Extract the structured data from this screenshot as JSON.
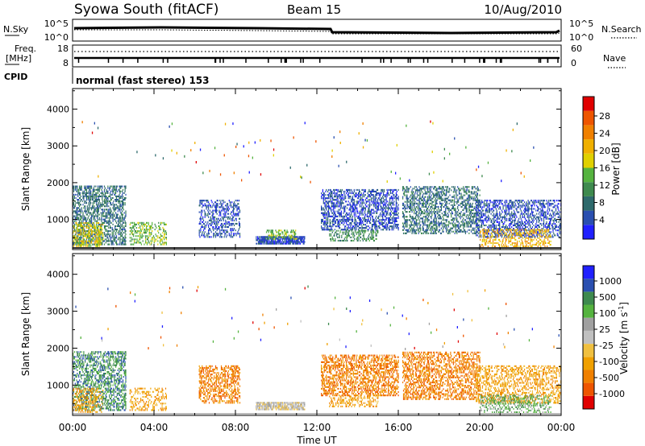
{
  "header": {
    "station": "Syowa South (fitACF)",
    "beam": "Beam 15",
    "date": "10/Aug/2010"
  },
  "top_panel": {
    "left_label_sky": "N.Sky",
    "left_ticks": [
      "10^5",
      "10^0"
    ],
    "right_ticks": [
      "10^5",
      "10^0"
    ],
    "right_label_search": "N.Search",
    "freq_label_line1": "Freq.",
    "freq_label_line2": "[MHz]",
    "freq_ticks": [
      "18",
      "8"
    ],
    "nave_ticks": [
      "60",
      "0"
    ],
    "right_label_nave": "Nave",
    "cpid_label": "CPID",
    "cpid_text": "normal (fast stereo) 153"
  },
  "chart_data": [
    {
      "type": "heatmap",
      "name": "power",
      "ylabel": "Slant Range [km]",
      "xlabel": "Time UT",
      "x_ticks": [
        "00:00",
        "04:00",
        "08:00",
        "12:00",
        "16:00",
        "20:00",
        "00:00"
      ],
      "x_range_hours": [
        0,
        24
      ],
      "y_ticks": [
        1000,
        2000,
        3000,
        4000
      ],
      "y_range_km": [
        180,
        4560
      ],
      "colorbar": {
        "label": "Power [dB]",
        "tick_labels": [
          "28",
          "24",
          "20",
          "16",
          "12",
          "8",
          "4"
        ],
        "colors": [
          "#2020ff",
          "#2a4fb0",
          "#2e6a6c",
          "#3e8a4e",
          "#55b33f",
          "#e0d000",
          "#f0b000",
          "#f08000",
          "#ee5500",
          "#e00000"
        ]
      },
      "echo_regions": [
        {
          "t0": 0.0,
          "t1": 2.6,
          "r0": 300,
          "r1": 1900,
          "level": 2,
          "density": 0.45
        },
        {
          "t0": 0.0,
          "t1": 1.5,
          "r0": 250,
          "r1": 900,
          "level": 5,
          "density": 0.4
        },
        {
          "t0": 2.8,
          "t1": 4.6,
          "r0": 300,
          "r1": 900,
          "level": 4,
          "density": 0.35
        },
        {
          "t0": 6.2,
          "t1": 8.2,
          "r0": 500,
          "r1": 1500,
          "level": 1,
          "density": 0.35
        },
        {
          "t0": 9.0,
          "t1": 11.4,
          "r0": 320,
          "r1": 520,
          "level": 1,
          "density": 0.75
        },
        {
          "t0": 9.5,
          "t1": 11.0,
          "r0": 450,
          "r1": 700,
          "level": 4,
          "density": 0.4
        },
        {
          "t0": 12.2,
          "t1": 16.0,
          "r0": 700,
          "r1": 1800,
          "level": 1,
          "density": 0.45
        },
        {
          "t0": 12.6,
          "t1": 15.0,
          "r0": 400,
          "r1": 700,
          "level": 3,
          "density": 0.4
        },
        {
          "t0": 16.2,
          "t1": 20.0,
          "r0": 600,
          "r1": 1900,
          "level": 2,
          "density": 0.4
        },
        {
          "t0": 19.8,
          "t1": 24.0,
          "r0": 500,
          "r1": 1500,
          "level": 1,
          "density": 0.4
        },
        {
          "t0": 20.0,
          "t1": 23.5,
          "r0": 200,
          "r1": 700,
          "level": 6,
          "density": 0.3
        }
      ]
    },
    {
      "type": "heatmap",
      "name": "velocity",
      "ylabel": "Slant Range [km]",
      "xlabel": "Time UT",
      "x_ticks": [
        "00:00",
        "04:00",
        "08:00",
        "12:00",
        "16:00",
        "20:00",
        "00:00"
      ],
      "x_range_hours": [
        0,
        24
      ],
      "y_ticks": [
        1000,
        2000,
        3000,
        4000
      ],
      "y_range_km": [
        180,
        4560
      ],
      "colorbar": {
        "label": "Velocity [m s",
        "label_superscript": "-1",
        "label_close": "]",
        "tick_labels": [
          "1000",
          "500",
          "100",
          "25",
          "-25",
          "-100",
          "-500",
          "-1000"
        ],
        "colors": [
          "#e00000",
          "#ee5500",
          "#f08000",
          "#f0a000",
          "#f0c040",
          "#c0c0c0",
          "#a0a0a0",
          "#55b33f",
          "#3e8a4e",
          "#2a4fb0",
          "#2020ff"
        ]
      },
      "echo_regions": [
        {
          "t0": 0.0,
          "t1": 2.6,
          "r0": 300,
          "r1": 1900,
          "level": 8,
          "density": 0.4
        },
        {
          "t0": 0.0,
          "t1": 1.5,
          "r0": 250,
          "r1": 900,
          "level": 3,
          "density": 0.35
        },
        {
          "t0": 2.8,
          "t1": 4.6,
          "r0": 300,
          "r1": 900,
          "level": 3,
          "density": 0.3
        },
        {
          "t0": 6.2,
          "t1": 8.2,
          "r0": 500,
          "r1": 1500,
          "level": 2,
          "density": 0.4
        },
        {
          "t0": 9.0,
          "t1": 11.4,
          "r0": 320,
          "r1": 520,
          "level": 5,
          "density": 0.75
        },
        {
          "t0": 12.2,
          "t1": 16.0,
          "r0": 700,
          "r1": 1800,
          "level": 2,
          "density": 0.45
        },
        {
          "t0": 12.6,
          "t1": 15.0,
          "r0": 400,
          "r1": 700,
          "level": 3,
          "density": 0.35
        },
        {
          "t0": 16.2,
          "t1": 20.0,
          "r0": 600,
          "r1": 1900,
          "level": 2,
          "density": 0.4
        },
        {
          "t0": 19.8,
          "t1": 24.0,
          "r0": 500,
          "r1": 1500,
          "level": 3,
          "density": 0.35
        },
        {
          "t0": 20.0,
          "t1": 23.5,
          "r0": 200,
          "r1": 700,
          "level": 7,
          "density": 0.3
        }
      ]
    }
  ]
}
